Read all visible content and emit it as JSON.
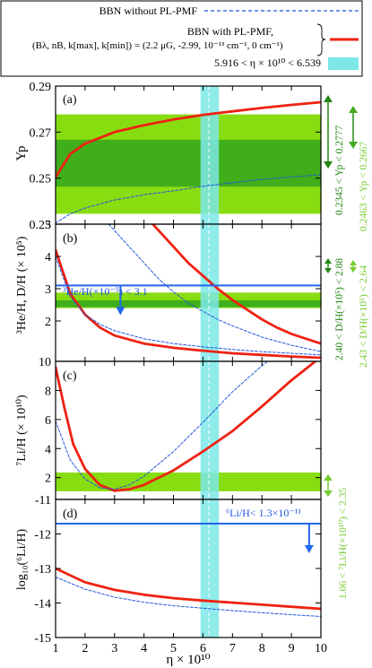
{
  "legend": {
    "entries": [
      {
        "label": "BBN without PL-PMF",
        "style": "dashed",
        "color": "#2255dd"
      },
      {
        "label": "BBN with PL-PMF,",
        "style": "solid",
        "color": "#ee2211"
      },
      {
        "label": "5.916 < η × 10¹⁰ < 6.539",
        "style": "band",
        "color": "#7de8e8"
      }
    ],
    "params_lhs": "(Bλ, nB, k[max], k[min])",
    "params_rhs": "= (2.2 μG, -2.99, 10⁻¹³ cm⁻¹, 0 cm⁻¹)"
  },
  "colors": {
    "pmf": "#ee2211",
    "std": "#2255dd",
    "obs_light": "#88dd11",
    "obs_dark": "#3fae1a",
    "eta_band": "#7de8e8",
    "arrow_blue": "#2266ee",
    "green_text_dark": "#228811",
    "green_text_light": "#77cc33"
  },
  "xaxis": {
    "label": "η × 10¹⁰",
    "ticks": [
      "1",
      "2",
      "3",
      "4",
      "5",
      "6",
      "7",
      "8",
      "9",
      "10"
    ]
  },
  "panels": [
    {
      "id": "a",
      "tag": "(a)",
      "ylabel": "Yp",
      "yticks": [
        "0.23",
        "0.25",
        "0.27",
        "0.29"
      ]
    },
    {
      "id": "b",
      "tag": "(b)",
      "ylabel": "³He/H, D/H (× 10⁵)",
      "yticks": [
        "2",
        "3",
        "4",
        "5"
      ]
    },
    {
      "id": "c",
      "tag": "(c)",
      "ylabel": "⁷Li/H (× 10¹⁰)",
      "yticks": [
        "2",
        "4",
        "6",
        "8",
        "10"
      ]
    },
    {
      "id": "d",
      "tag": "(d)",
      "ylabel": "log₁₀(⁶Li/H)",
      "yticks": [
        "-15",
        "-14",
        "-13",
        "-12",
        "-11"
      ]
    }
  ],
  "annotations": {
    "he3_limit": "³He/H(×10⁻⁵) < 3.1",
    "li6_limit": "⁶Li/H< 1.3×10⁻¹¹",
    "right_yp_1": "0.2345 < Yp < 0.2777",
    "right_yp_2": "0.2463 < Yp < 0.2667",
    "right_dh_1": "2.40 < D/H(×10⁵) < 2.88",
    "right_dh_2": "2.43 < D/H(×10⁵) < 2.64",
    "right_li7": "1.06 < ⁷Li/H(×10¹⁰) < 2.35"
  },
  "chart_data": [
    {
      "type": "line",
      "panel": "a",
      "xlabel": "η × 10¹⁰",
      "ylabel": "Yp",
      "xlim": [
        1,
        10
      ],
      "ylim": [
        0.23,
        0.29
      ],
      "eta_band": [
        5.916,
        6.539
      ],
      "eta_center": 6.2,
      "observation_bands": [
        {
          "range": [
            0.2345,
            0.2777
          ],
          "shade": "light"
        },
        {
          "range": [
            0.2463,
            0.2667
          ],
          "shade": "dark"
        }
      ],
      "series": [
        {
          "style": "solid",
          "x": [
            1,
            1.5,
            2,
            3,
            4,
            5,
            6,
            7,
            8,
            9,
            10
          ],
          "values": [
            0.2505,
            0.2605,
            0.265,
            0.27,
            0.273,
            0.2755,
            0.2775,
            0.279,
            0.2805,
            0.2818,
            0.283
          ]
        },
        {
          "style": "dashed",
          "x": [
            1,
            1.5,
            2,
            3,
            4,
            5,
            6,
            7,
            8,
            9,
            10
          ],
          "values": [
            0.2305,
            0.2345,
            0.237,
            0.2405,
            0.2428,
            0.2445,
            0.2465,
            0.248,
            0.2495,
            0.2505,
            0.2515
          ]
        }
      ]
    },
    {
      "type": "line",
      "panel": "b",
      "xlabel": "η × 10¹⁰",
      "ylabel": "³He/H, D/H (× 10⁵)",
      "xlim": [
        1,
        10
      ],
      "ylim": [
        0.75,
        5
      ],
      "eta_band": [
        5.916,
        6.539
      ],
      "eta_center": 6.2,
      "observation_bands": [
        {
          "range": [
            2.4,
            2.88
          ],
          "shade": "light"
        },
        {
          "range": [
            2.43,
            2.64
          ],
          "shade": "dark"
        }
      ],
      "limits": [
        {
          "label": "³He/H(×10⁻⁵) < 3.1",
          "value": 3.1,
          "arrow_x": 3.2
        }
      ],
      "series": [
        {
          "name": "D/H (with PL-PMF)",
          "style": "solid",
          "x": [
            4.3,
            5,
            5.5,
            6,
            6.5,
            7,
            7.5,
            8,
            8.5,
            9,
            10
          ],
          "values": [
            5.0,
            4.3,
            3.8,
            3.4,
            3.0,
            2.65,
            2.35,
            2.05,
            1.8,
            1.6,
            1.3
          ]
        },
        {
          "name": "³He/H (with PL-PMF)",
          "style": "solid",
          "x": [
            1,
            1.5,
            2,
            2.5,
            3,
            4,
            5,
            6,
            7,
            8,
            9,
            10
          ],
          "values": [
            4.2,
            2.85,
            2.2,
            1.8,
            1.55,
            1.3,
            1.17,
            1.08,
            1.0,
            0.95,
            0.9,
            0.86
          ]
        },
        {
          "name": "D/H (without PL-PMF)",
          "style": "dashed",
          "x": [
            2.8,
            3.5,
            4,
            4.5,
            5,
            5.5,
            6,
            6.5,
            7,
            8,
            9,
            10
          ],
          "values": [
            5.0,
            4.3,
            3.8,
            3.3,
            2.9,
            2.55,
            2.3,
            2.05,
            1.85,
            1.5,
            1.25,
            1.05
          ]
        },
        {
          "name": "³He/H (without PL-PMF)",
          "style": "dashed",
          "x": [
            1,
            1.5,
            2,
            2.5,
            3,
            4,
            5,
            6,
            7,
            8,
            9,
            10
          ],
          "values": [
            4.0,
            2.75,
            2.2,
            1.9,
            1.7,
            1.45,
            1.3,
            1.2,
            1.12,
            1.05,
            1.0,
            0.95
          ]
        }
      ]
    },
    {
      "type": "line",
      "panel": "c",
      "xlabel": "η × 10¹⁰",
      "ylabel": "⁷Li/H (× 10¹⁰)",
      "xlim": [
        1,
        10
      ],
      "ylim": [
        0.5,
        10
      ],
      "eta_band": [
        5.916,
        6.539
      ],
      "eta_center": 6.2,
      "observation_bands": [
        {
          "range": [
            1.06,
            2.35
          ],
          "shade": "light"
        }
      ],
      "series": [
        {
          "style": "solid",
          "x": [
            1,
            1.3,
            1.6,
            2,
            2.5,
            3,
            3.5,
            4,
            5,
            6,
            7,
            8,
            9,
            10
          ],
          "values": [
            9.6,
            6.8,
            4.3,
            2.6,
            1.5,
            1.1,
            1.2,
            1.5,
            2.5,
            3.8,
            5.2,
            6.9,
            8.7,
            10.3
          ]
        },
        {
          "style": "dashed",
          "x": [
            1,
            1.5,
            2,
            2.5,
            3,
            3.5,
            4,
            5,
            6,
            7,
            8,
            8.5
          ],
          "values": [
            5.9,
            3.2,
            1.9,
            1.3,
            1.2,
            1.5,
            2.1,
            3.8,
            5.8,
            7.9,
            9.7,
            10.5
          ]
        }
      ]
    },
    {
      "type": "line",
      "panel": "d",
      "xlabel": "η × 10¹⁰",
      "ylabel": "log₁₀(⁶Li/H)",
      "xlim": [
        1,
        10
      ],
      "ylim": [
        -15,
        -11
      ],
      "eta_band": [
        5.916,
        6.539
      ],
      "eta_center": 6.2,
      "limits": [
        {
          "label": "⁶Li/H< 1.3×10⁻¹¹",
          "value": -11.7,
          "arrow_x": 9.6
        }
      ],
      "series": [
        {
          "style": "solid",
          "x": [
            1,
            2,
            3,
            4,
            5,
            6,
            7,
            8,
            9,
            10
          ],
          "values": [
            -13.0,
            -13.4,
            -13.62,
            -13.76,
            -13.86,
            -13.93,
            -13.99,
            -14.05,
            -14.11,
            -14.17
          ]
        },
        {
          "style": "dashed",
          "x": [
            1,
            2,
            3,
            4,
            5,
            6,
            7,
            8,
            9,
            10
          ],
          "values": [
            -13.25,
            -13.6,
            -13.83,
            -13.98,
            -14.08,
            -14.15,
            -14.22,
            -14.28,
            -14.34,
            -14.39
          ]
        }
      ]
    }
  ]
}
